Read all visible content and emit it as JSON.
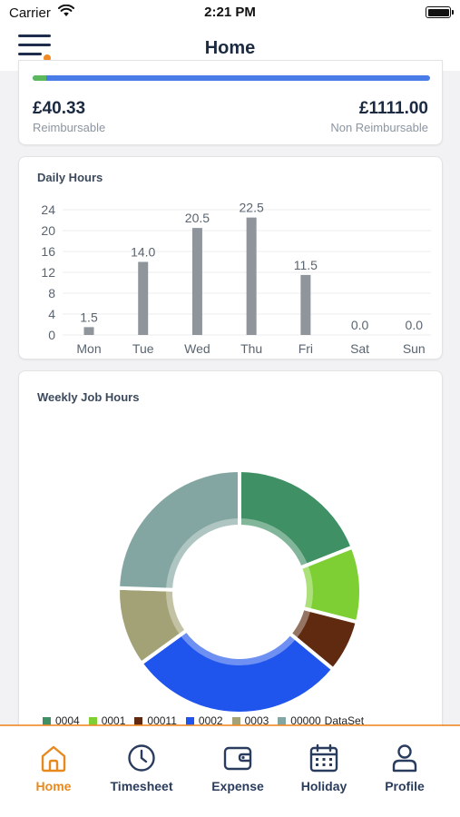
{
  "status_bar": {
    "carrier": "Carrier",
    "time": "2:21 PM"
  },
  "header": {
    "title": "Home"
  },
  "expenses": {
    "reimbursable_amount": "£40.33",
    "reimbursable_label": "Reimbursable",
    "non_reimbursable_amount": "£1111.00",
    "non_reimbursable_label": "Non Reimbursable",
    "progress_fraction": 0.035,
    "colors": {
      "reimbursable": "#5cb85c",
      "non_reimbursable": "#4a7ce8"
    }
  },
  "daily_hours": {
    "title": "Daily Hours",
    "chart_data": {
      "type": "bar",
      "categories": [
        "Mon",
        "Tue",
        "Wed",
        "Thu",
        "Fri",
        "Sat",
        "Sun"
      ],
      "values": [
        1.5,
        14.0,
        20.5,
        22.5,
        11.5,
        0.0,
        0.0
      ],
      "value_labels": [
        "1.5",
        "14.0",
        "20.5",
        "22.5",
        "11.5",
        "0.0",
        "0.0"
      ],
      "y_ticks": [
        "0",
        "4",
        "8",
        "12",
        "16",
        "20",
        "24"
      ],
      "ylim": [
        0,
        24
      ],
      "grid": true,
      "bar_color": "#8f959b"
    }
  },
  "weekly_job_hours": {
    "title": "Weekly Job Hours",
    "chart_data": {
      "type": "pie",
      "donut": true,
      "labels": [
        "0004",
        "0001",
        "00011",
        "0002",
        "0003",
        "00000"
      ],
      "values": [
        19.0,
        10.0,
        7.0,
        29.0,
        10.5,
        24.5
      ],
      "colors": [
        "#3f9065",
        "#7ecf33",
        "#5f2a10",
        "#1f55ec",
        "#a3a276",
        "#84a6a2"
      ],
      "legend_suffix": "DataSet"
    }
  },
  "tabs": [
    {
      "label": "Home",
      "icon": "home-icon",
      "active": true
    },
    {
      "label": "Timesheet",
      "icon": "clock-icon",
      "active": false
    },
    {
      "label": "Expense",
      "icon": "wallet-icon",
      "active": false
    },
    {
      "label": "Holiday",
      "icon": "calendar-icon",
      "active": false
    },
    {
      "label": "Profile",
      "icon": "person-icon",
      "active": false
    }
  ],
  "theme": {
    "accent": "#e8891f",
    "navy": "#2a3c5e"
  }
}
